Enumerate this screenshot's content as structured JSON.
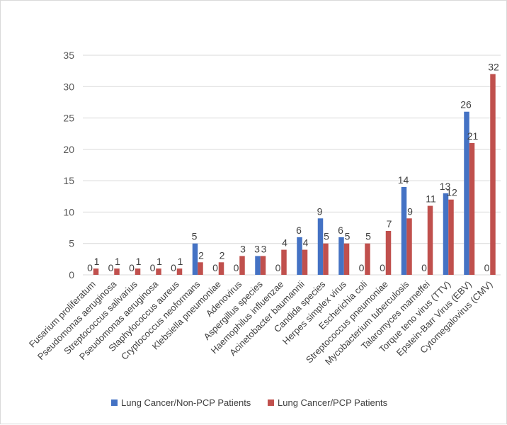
{
  "chart_data": {
    "type": "bar",
    "title": "",
    "xlabel": "",
    "ylabel": "",
    "ylim": [
      0,
      35
    ],
    "yticks": [
      0,
      5,
      10,
      15,
      20,
      25,
      30,
      35
    ],
    "grid": true,
    "legend_position": "bottom",
    "categories": [
      "Fusarium proliferatum",
      "Pseudomonas aeruginosa",
      "Streptococcus salivarius",
      "Pseudomonas aeruginosa",
      "Staphylococcus aureus",
      "Cryptococcus neoformans",
      "Klebsiella pneumoniae",
      "Adenovirus",
      "Aspergillus species",
      "Haemophilus influenzae",
      "Acinetobacter baumannii",
      "Candida species",
      "Herpes simplex virus",
      "Escherichia coli",
      "Streptococcus pneumoniae",
      "Mycobacterium tuberculosis",
      "Talaromyces marneffei",
      "Torque teno virus (TTV)",
      "Epstein-Barr Virus (EBV)",
      "Cytomegalovirus (CMV)"
    ],
    "series": [
      {
        "name": "Lung Cancer/Non-PCP Patients",
        "color": "#4472c4",
        "values": [
          0,
          0,
          0,
          0,
          0,
          5,
          0,
          0,
          3,
          0,
          6,
          9,
          6,
          0,
          0,
          14,
          0,
          13,
          26,
          0
        ]
      },
      {
        "name": "Lung Cancer/PCP Patients",
        "color": "#c0504d",
        "values": [
          1,
          1,
          1,
          1,
          1,
          2,
          2,
          3,
          3,
          4,
          4,
          5,
          5,
          5,
          7,
          9,
          11,
          12,
          21,
          32
        ]
      }
    ]
  }
}
